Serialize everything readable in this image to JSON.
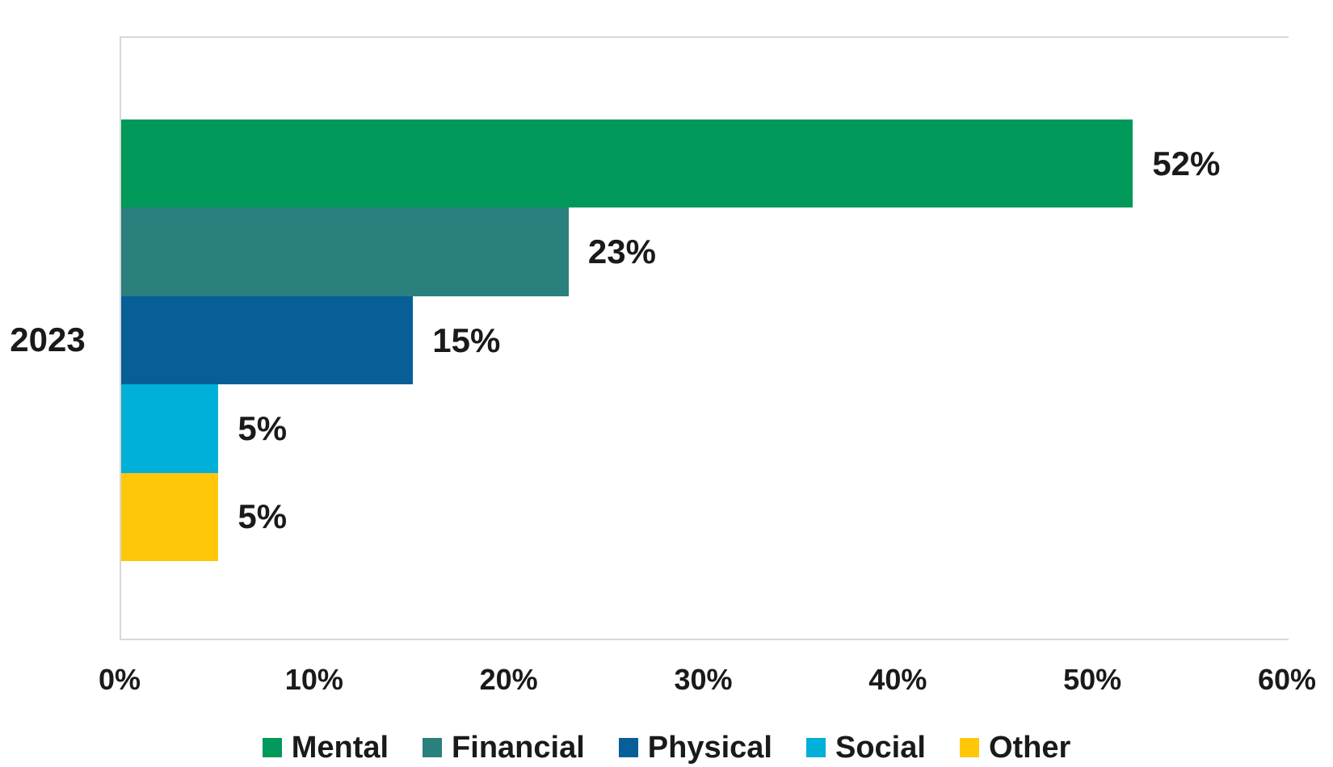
{
  "chart_data": {
    "type": "bar",
    "orientation": "horizontal",
    "title": "",
    "xlabel": "",
    "ylabel": "",
    "categories": [
      "2023"
    ],
    "series": [
      {
        "name": "Mental",
        "values": [
          52
        ],
        "label": "52%",
        "color": "#00995A"
      },
      {
        "name": "Financial",
        "values": [
          23
        ],
        "label": "23%",
        "color": "#2A807C"
      },
      {
        "name": "Physical",
        "values": [
          15
        ],
        "label": "15%",
        "color": "#085F98"
      },
      {
        "name": "Social",
        "values": [
          5
        ],
        "label": "5%",
        "color": "#00B0D8"
      },
      {
        "name": "Other",
        "values": [
          5
        ],
        "label": "5%",
        "color": "#FFC70A"
      }
    ],
    "xlim": [
      0,
      60
    ],
    "x_ticks": [
      "0%",
      "10%",
      "20%",
      "30%",
      "40%",
      "50%",
      "60%"
    ],
    "grid": false,
    "bar_gap": 0,
    "data_labels_shown": true,
    "legend_position": "bottom",
    "legend": [
      "Mental",
      "Financial",
      "Physical",
      "Social",
      "Other"
    ]
  },
  "styles": {
    "text_color": "#1A1A1A",
    "plot_border_color": "#D8D8D8",
    "background_color": "#FFFFFF"
  }
}
